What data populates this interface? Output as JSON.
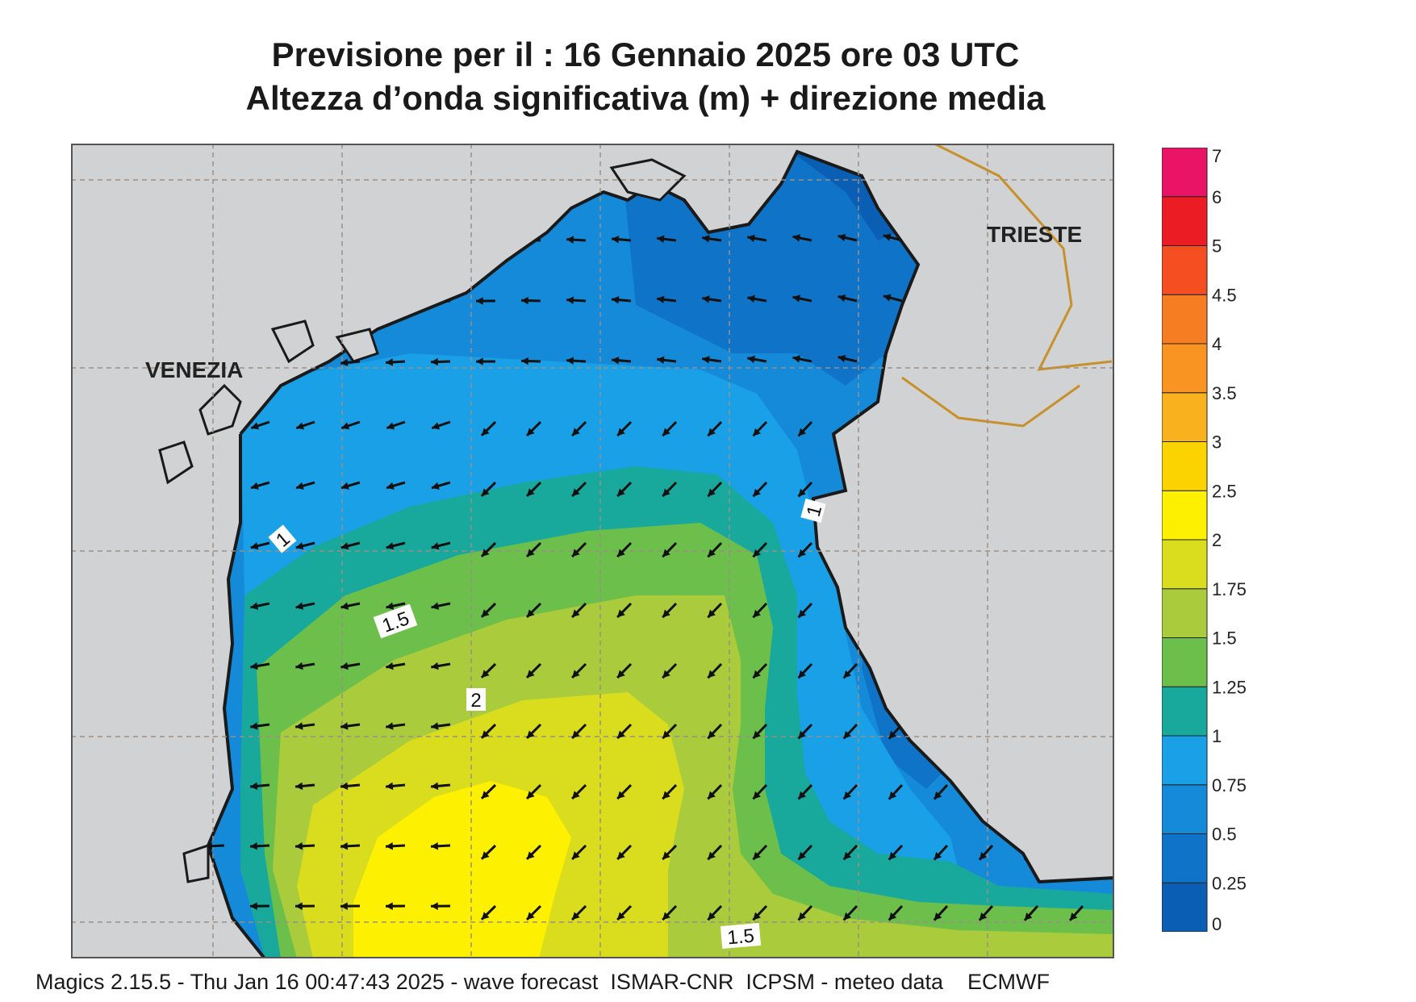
{
  "title": {
    "line1": "Previsione per il  :  16  Gennaio  2025   ore 03 UTC",
    "line2": "Altezza d’onda significativa (m) + direzione media"
  },
  "cities": [
    {
      "name": "VENEZIA"
    },
    {
      "name": "TRIESTE"
    }
  ],
  "contour_labels": [
    "1",
    "1",
    "1.5",
    "2",
    "1.5"
  ],
  "colorbar": {
    "ticks": [
      "0",
      "0.25",
      "0.5",
      "0.75",
      "1",
      "1.25",
      "1.5",
      "1.75",
      "2",
      "2.5",
      "3",
      "3.5",
      "4",
      "4.5",
      "5",
      "6",
      "7"
    ],
    "colors": [
      "#0a5fb4",
      "#0f74c8",
      "#148ad8",
      "#1aa0e6",
      "#19a99c",
      "#6cbf4b",
      "#a9cb3c",
      "#d9dd1e",
      "#fdf000",
      "#fbd400",
      "#f9b11d",
      "#f99322",
      "#f77d22",
      "#f54e20",
      "#ec1c24",
      "#ea1466"
    ]
  },
  "colors": {
    "land": "#d0d2d3",
    "coast": "#1a1a1a",
    "border": "#c8902a",
    "grid": "#9a8f86"
  },
  "arrow_direction": "southwest",
  "footer": "Magics 2.15.5 - Thu Jan 16 00:47:43 2025 - wave forecast  ISMAR-CNR  ICPSM - meteo data    ECMWF"
}
